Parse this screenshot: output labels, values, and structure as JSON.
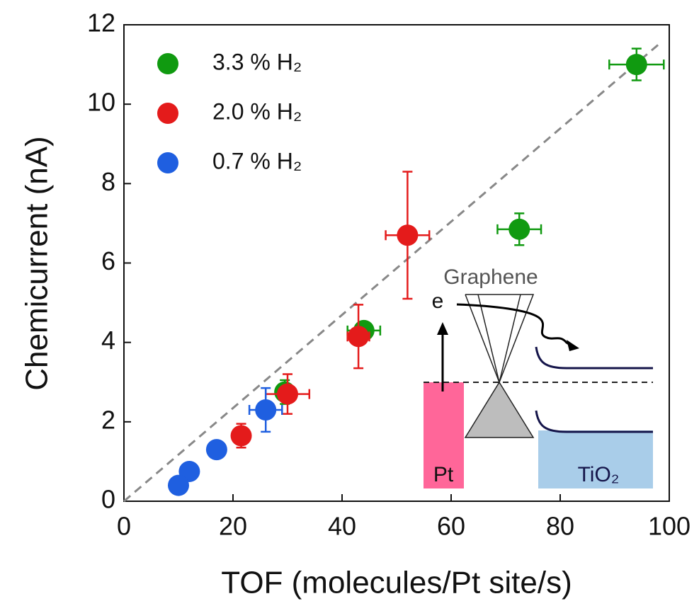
{
  "chart_data": {
    "type": "scatter",
    "xlabel": "TOF (molecules/Pt site/s)",
    "ylabel": "Chemicurrent (nA)",
    "xlim": [
      0,
      100
    ],
    "ylim": [
      0,
      12
    ],
    "xticks": [
      0,
      20,
      40,
      60,
      80,
      100
    ],
    "yticks": [
      0,
      2,
      4,
      6,
      8,
      10,
      12
    ],
    "legend": "upper left",
    "series": [
      {
        "name": "3.3 % H₂",
        "color": "#109a10",
        "x": [
          94,
          72.5,
          44,
          29.5
        ],
        "values": [
          11.0,
          6.85,
          4.3,
          2.75
        ],
        "xerr": [
          5,
          4,
          3,
          1
        ],
        "yerr": [
          0.4,
          0.4,
          0.2,
          0.3
        ]
      },
      {
        "name": "2.0 % H₂",
        "color": "#e41b1b",
        "x": [
          52,
          43,
          30,
          21.5
        ],
        "values": [
          6.7,
          4.15,
          2.7,
          1.65
        ],
        "xerr": [
          4,
          2,
          4,
          1
        ],
        "yerr": [
          1.6,
          0.8,
          0.5,
          0.3
        ]
      },
      {
        "name": "0.7 % H₂",
        "color": "#1f5fe0",
        "x": [
          26,
          17,
          12,
          10
        ],
        "values": [
          2.3,
          1.3,
          0.75,
          0.4
        ],
        "xerr": [
          3,
          1,
          null,
          null
        ],
        "yerr": [
          0.55,
          0.2,
          null,
          null
        ]
      }
    ],
    "reference_line": {
      "x": [
        0,
        98
      ],
      "y": [
        0,
        11.5
      ],
      "color": "#888888"
    },
    "inset": {
      "graphene": "Graphene",
      "electron": "e",
      "metal": "Pt",
      "oxide": "TiO₂"
    }
  }
}
